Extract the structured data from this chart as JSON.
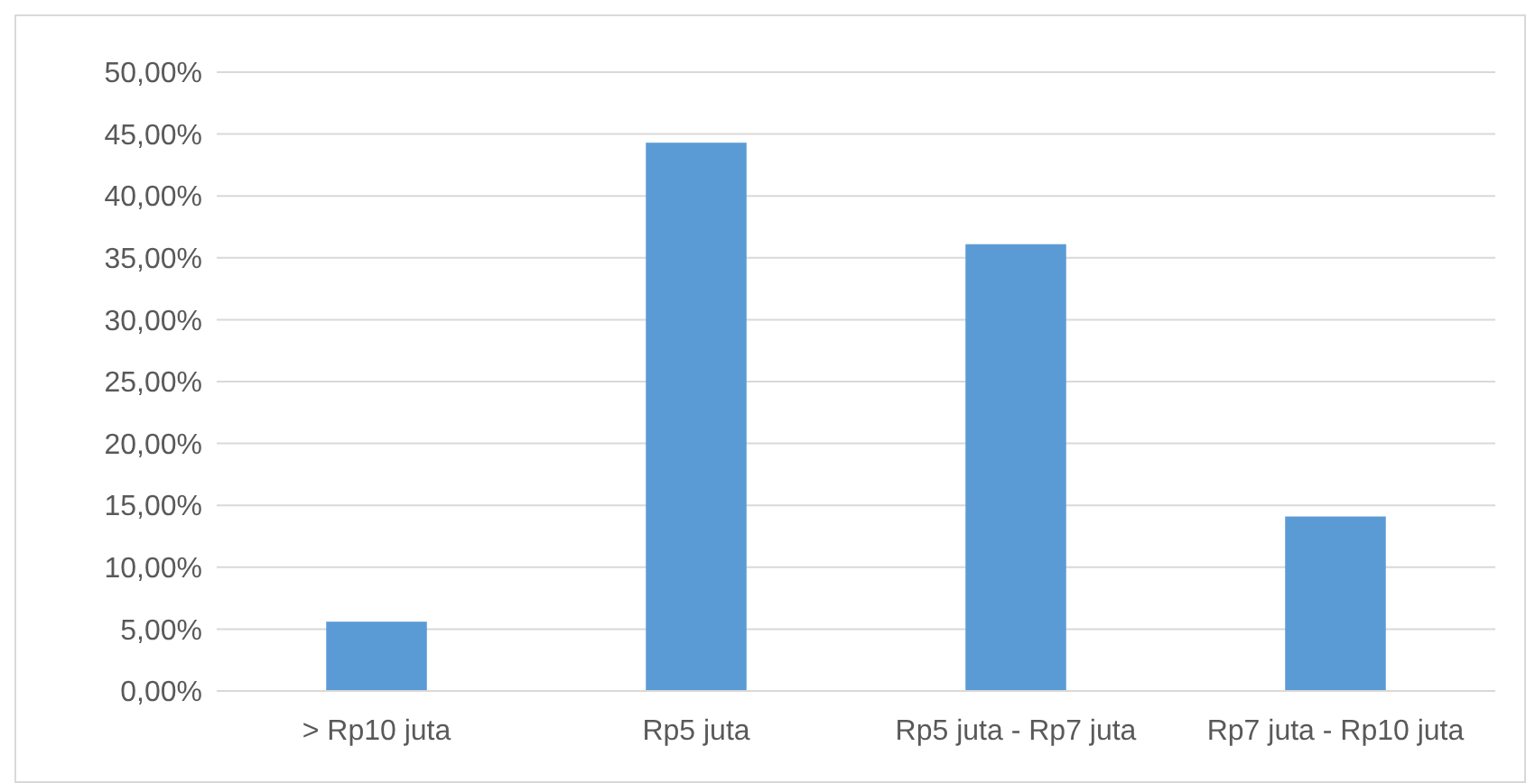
{
  "chart_data": {
    "type": "bar",
    "categories": [
      "> Rp10 juta",
      "Rp5 juta",
      "Rp5 juta - Rp7 juta",
      "Rp7 juta - Rp10 juta"
    ],
    "values": [
      5.6,
      44.3,
      36.1,
      14.1
    ],
    "color": "#5b9bd5",
    "ylim": [
      0,
      50
    ],
    "yticks": [
      {
        "value": 0,
        "label": "0,00%"
      },
      {
        "value": 5,
        "label": "5,00%"
      },
      {
        "value": 10,
        "label": "10,00%"
      },
      {
        "value": 15,
        "label": "15,00%"
      },
      {
        "value": 20,
        "label": "20,00%"
      },
      {
        "value": 25,
        "label": "25,00%"
      },
      {
        "value": 30,
        "label": "30,00%"
      },
      {
        "value": 35,
        "label": "35,00%"
      },
      {
        "value": 40,
        "label": "40,00%"
      },
      {
        "value": 45,
        "label": "45,00%"
      },
      {
        "value": 50,
        "label": "50,00%"
      }
    ],
    "grid": "y"
  }
}
